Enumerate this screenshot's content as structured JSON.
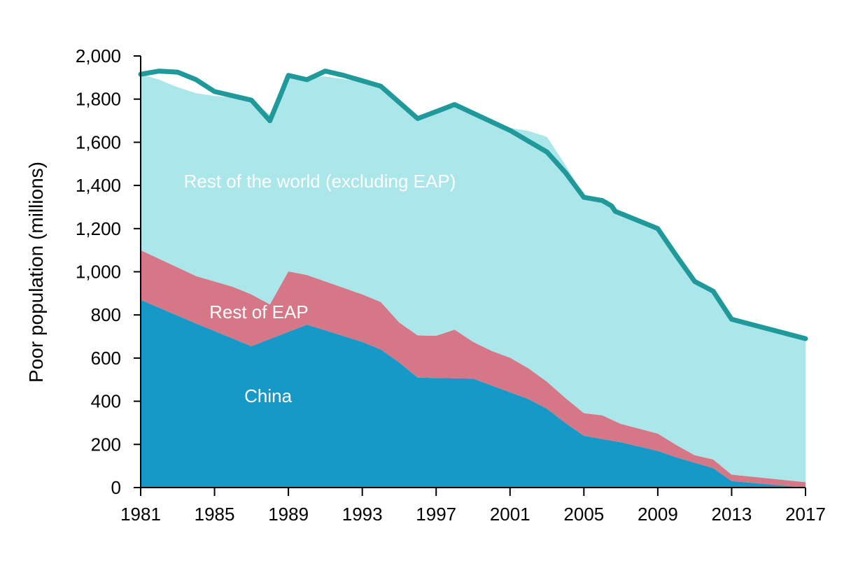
{
  "chart_data": {
    "type": "area",
    "stacked": true,
    "title": "",
    "xlabel": "",
    "ylabel": "Poor population (millions)",
    "xlim": [
      1981,
      2017
    ],
    "ylim": [
      0,
      2000
    ],
    "x_ticks": [
      "1981",
      "1985",
      "1989",
      "1993",
      "1997",
      "2001",
      "2005",
      "2009",
      "2013",
      "2017"
    ],
    "y_ticks": [
      "0",
      "200",
      "400",
      "600",
      "800",
      "1,000",
      "1,200",
      "1,400",
      "1,600",
      "1,800",
      "2,000"
    ],
    "grid": false,
    "legend": "none",
    "colors": {
      "china": "#1799c7",
      "rest_eap": "#d57786",
      "rest_world": "#aae6ea",
      "total_line": "#20999a"
    },
    "series": [
      {
        "key": "china",
        "name": "China",
        "points": [
          [
            1981,
            870
          ],
          [
            1984,
            760
          ],
          [
            1986,
            690
          ],
          [
            1987,
            655
          ],
          [
            1990,
            755
          ],
          [
            1993,
            675
          ],
          [
            1994,
            640
          ],
          [
            1995,
            580
          ],
          [
            1996,
            510
          ],
          [
            1999,
            505
          ],
          [
            2002,
            410
          ],
          [
            2003,
            365
          ],
          [
            2004,
            300
          ],
          [
            2005,
            240
          ],
          [
            2007,
            210
          ],
          [
            2008,
            190
          ],
          [
            2009,
            170
          ],
          [
            2010,
            140
          ],
          [
            2011,
            115
          ],
          [
            2012,
            90
          ],
          [
            2013,
            30
          ],
          [
            2017,
            0
          ]
        ]
      },
      {
        "key": "rest_eap",
        "name": "Rest of EAP",
        "points": [
          [
            1981,
            230
          ],
          [
            1984,
            220
          ],
          [
            1986,
            240
          ],
          [
            1987,
            240
          ],
          [
            1988,
            160
          ],
          [
            1989,
            280
          ],
          [
            1990,
            230
          ],
          [
            1993,
            220
          ],
          [
            1994,
            220
          ],
          [
            1995,
            185
          ],
          [
            1996,
            195
          ],
          [
            1997,
            195
          ],
          [
            1998,
            225
          ],
          [
            1999,
            170
          ],
          [
            2000,
            160
          ],
          [
            2001,
            160
          ],
          [
            2003,
            125
          ],
          [
            2005,
            105
          ],
          [
            2006,
            110
          ],
          [
            2007,
            85
          ],
          [
            2009,
            80
          ],
          [
            2011,
            35
          ],
          [
            2012,
            40
          ],
          [
            2013,
            30
          ],
          [
            2017,
            25
          ]
        ]
      },
      {
        "key": "rest_world",
        "name": "Rest of the world (excluding EAP)",
        "points": [
          [
            1981,
            815
          ],
          [
            1982,
            830
          ],
          [
            1983,
            835
          ],
          [
            1985,
            860
          ],
          [
            1987,
            895
          ],
          [
            1988,
            880
          ],
          [
            1989,
            910
          ],
          [
            1990,
            915
          ],
          [
            1991,
            950
          ],
          [
            1993,
            985
          ],
          [
            1994,
            1000
          ],
          [
            1996,
            1010
          ],
          [
            1998,
            1045
          ],
          [
            2001,
            1065
          ],
          [
            2003,
            1135
          ],
          [
            2004,
            1080
          ],
          [
            2005,
            1005
          ],
          [
            2006,
            995
          ],
          [
            2007,
            980
          ],
          [
            2009,
            960
          ],
          [
            2011,
            810
          ],
          [
            2012,
            780
          ],
          [
            2013,
            725
          ],
          [
            2015,
            690
          ],
          [
            2017,
            665
          ]
        ]
      }
    ],
    "total": [
      [
        1981,
        1915
      ],
      [
        1982,
        1930
      ],
      [
        1983,
        1925
      ],
      [
        1984,
        1890
      ],
      [
        1985,
        1835
      ],
      [
        1987,
        1795
      ],
      [
        1988,
        1700
      ],
      [
        1988.6,
        1825
      ],
      [
        1989,
        1910
      ],
      [
        1990,
        1890
      ],
      [
        1991,
        1930
      ],
      [
        1992,
        1910
      ],
      [
        1993,
        1885
      ],
      [
        1994,
        1860
      ],
      [
        1996,
        1710
      ],
      [
        1998,
        1775
      ],
      [
        2001,
        1655
      ],
      [
        2003,
        1555
      ],
      [
        2004,
        1460
      ],
      [
        2005,
        1345
      ],
      [
        2006,
        1330
      ],
      [
        2006.5,
        1305
      ],
      [
        2006.7,
        1280
      ],
      [
        2009,
        1200
      ],
      [
        2010,
        1075
      ],
      [
        2011,
        955
      ],
      [
        2012,
        910
      ],
      [
        2013,
        780
      ],
      [
        2015,
        735
      ],
      [
        2017,
        690
      ]
    ],
    "annotations": [
      {
        "text": "Rest of the world (excluding EAP)",
        "x": 1990.7,
        "y": 1390
      },
      {
        "text": "Rest of EAP",
        "x": 1987.4,
        "y": 785
      },
      {
        "text": "China",
        "x": 1987.9,
        "y": 395
      }
    ]
  }
}
